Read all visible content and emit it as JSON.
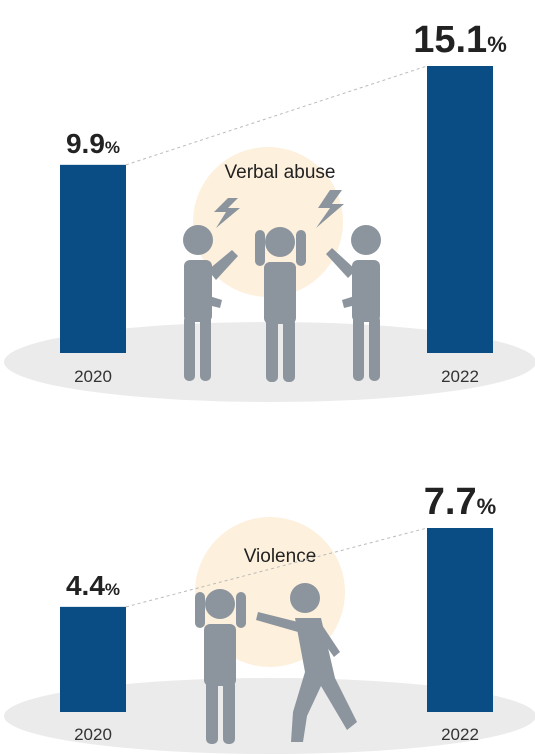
{
  "chart_data": [
    {
      "type": "bar",
      "title": "Verbal abuse",
      "categories": [
        "2020",
        "2022"
      ],
      "values": [
        9.9,
        15.1
      ],
      "unit": "%",
      "color": "#0a4d84"
    },
    {
      "type": "bar",
      "title": "Violence",
      "categories": [
        "2020",
        "2022"
      ],
      "values": [
        4.4,
        7.7
      ],
      "unit": "%",
      "color": "#0a4d84"
    }
  ]
}
